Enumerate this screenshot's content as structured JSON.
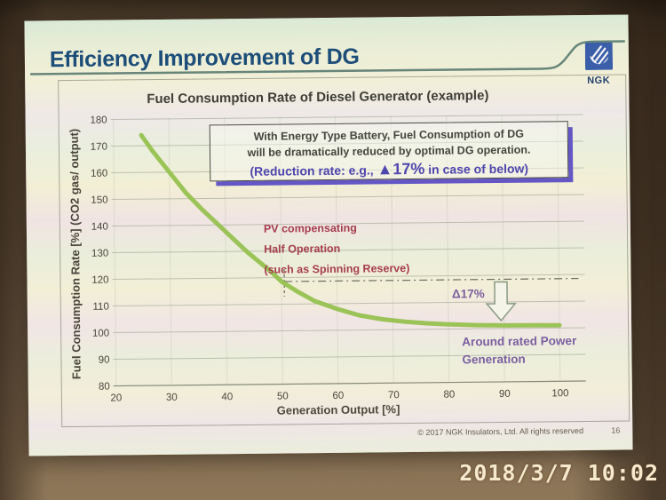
{
  "photo": {
    "camera_timestamp": "2018/3/7  10:02"
  },
  "slide": {
    "title": "Efficiency Improvement of DG",
    "logo_text": "NGK",
    "copyright": "© 2017  NGK Insulators, Ltd.  All rights reserved",
    "page_number": "16"
  },
  "callout": {
    "line1": "With Energy Type Battery, Fuel Consumption of DG",
    "line2": "will be dramatically reduced by optimal DG operation.",
    "line3_prefix": "(Reduction rate: e.g., ",
    "line3_emph": "▲17%",
    "line3_suffix": " in case of below)"
  },
  "chart_data": {
    "type": "line",
    "title": "Fuel Consumption Rate of Diesel Generator (example)",
    "xlabel": "Generation Output [%]",
    "ylabel": "Fuel Consumption Rate [%] (CO2 gas/ output)",
    "xlim": [
      20,
      100
    ],
    "ylim": [
      80,
      180
    ],
    "x_ticks": [
      20,
      30,
      40,
      50,
      60,
      70,
      80,
      90,
      100
    ],
    "y_ticks": [
      80,
      90,
      100,
      110,
      120,
      130,
      140,
      150,
      160,
      170,
      180
    ],
    "grid": "horizontal",
    "legend": "none",
    "series": [
      {
        "name": "DG fuel consumption rate",
        "color": "#94c04c",
        "x": [
          25,
          27,
          30,
          33,
          36,
          40,
          44,
          48,
          50,
          53,
          56,
          60,
          64,
          68,
          72,
          76,
          80,
          85,
          90,
          95,
          100
        ],
        "y": [
          174,
          168,
          160,
          152,
          145.5,
          137.5,
          129.5,
          122.5,
          118.5,
          114.5,
          111,
          108,
          105.5,
          104,
          103,
          102.3,
          101.8,
          101.4,
          101.2,
          101.1,
          101
        ]
      }
    ],
    "annotations": {
      "half_operation_label": [
        "PV compensating",
        "Half Operation",
        "(such as Spinning Reserve)"
      ],
      "baseline_y": 118.5,
      "baseline_x_range": [
        50.5,
        103.5
      ],
      "marker_x": 50.5,
      "arrow": {
        "x": 89.5,
        "from_y": 117.5,
        "to_y": 103
      },
      "delta_label": "Δ17%",
      "rated_label": [
        "Around rated Power",
        "Generation"
      ]
    }
  },
  "colors": {
    "title_blue": "#1d4e79",
    "curve_green": "#94c04c",
    "red_annotation": "#a63c4e",
    "purple_annotation": "#7b5fa0",
    "callout_text_purple": "#4f46ae",
    "callout_shadow_purple": "#6457c5",
    "logo_blue": "#3b5ea9",
    "wall_brown": "#66523c"
  }
}
